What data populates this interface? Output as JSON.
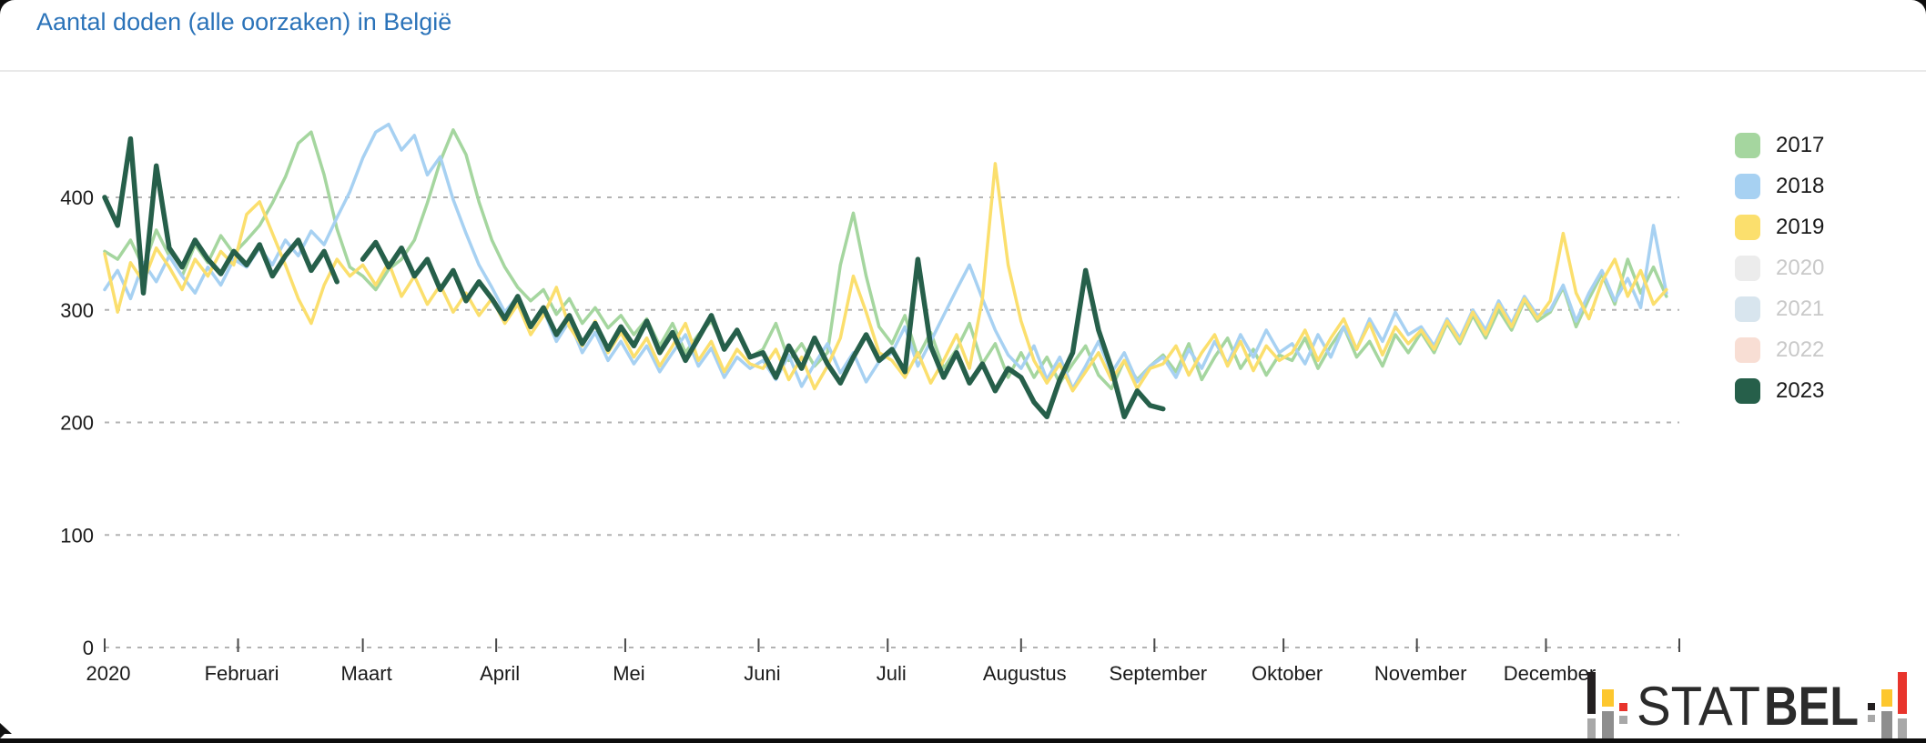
{
  "page": {
    "title": "Aantal doden (alle oorzaken) in België"
  },
  "logo": {
    "text_left": "STAT",
    "text_right": "BEL",
    "colors": {
      "black": "#231f20",
      "gray": "#8e8e8e",
      "light_gray": "#a8a8a8",
      "yellow": "#fdc72e",
      "red": "#e8342c"
    }
  },
  "chart_data": {
    "type": "line",
    "title": "Aantal doden (alle oorzaken) in België",
    "xlabel": "",
    "ylabel": "",
    "grid": "dashed-horizontal",
    "legend_position": "right",
    "x_axis": {
      "tick_labels": [
        "2020",
        "Februari",
        "Maart",
        "April",
        "Mei",
        "Juni",
        "Juli",
        "Augustus",
        "September",
        "Oktober",
        "November",
        "December"
      ],
      "tick_days": [
        0,
        31,
        60,
        91,
        121,
        152,
        182,
        213,
        244,
        274,
        305,
        335
      ],
      "domain_days": [
        0,
        366
      ]
    },
    "y_axis": {
      "ticks": [
        0,
        100,
        200,
        300,
        400
      ],
      "range": [
        0,
        470
      ]
    },
    "legend": [
      {
        "label": "2017",
        "swatch": "#a5d69f",
        "active": true
      },
      {
        "label": "2018",
        "swatch": "#a7d1f2",
        "active": true
      },
      {
        "label": "2019",
        "swatch": "#fbdf6d",
        "active": true
      },
      {
        "label": "2020",
        "swatch": "#ececec",
        "active": false
      },
      {
        "label": "2021",
        "swatch": "#d8e5ee",
        "active": false
      },
      {
        "label": "2022",
        "swatch": "#f8ded4",
        "active": false
      },
      {
        "label": "2023",
        "swatch": "#265f4a",
        "active": true
      }
    ],
    "sample_interval_days": 3,
    "series": [
      {
        "name": "2017",
        "color": "#a5d69f",
        "width": 3.5,
        "start_day": 0,
        "values": [
          352,
          345,
          362,
          338,
          371,
          348,
          330,
          358,
          342,
          366,
          350,
          362,
          375,
          395,
          418,
          448,
          458,
          420,
          372,
          338,
          330,
          318,
          336,
          345,
          362,
          395,
          432,
          460,
          438,
          396,
          362,
          338,
          320,
          308,
          318,
          296,
          310,
          288,
          302,
          284,
          295,
          278,
          292,
          268,
          288,
          262,
          278,
          290,
          266,
          282,
          258,
          265,
          288,
          255,
          270,
          250,
          262,
          340,
          386,
          330,
          285,
          270,
          295,
          258,
          280,
          248,
          265,
          288,
          252,
          270,
          240,
          262,
          240,
          258,
          235,
          252,
          268,
          242,
          230,
          255,
          238,
          250,
          260,
          245,
          270,
          238,
          258,
          275,
          248,
          265,
          242,
          260,
          255,
          275,
          248,
          268,
          285,
          258,
          272,
          250,
          278,
          262,
          280,
          262,
          288,
          270,
          295,
          275,
          300,
          282,
          308,
          290,
          298,
          320,
          285,
          310,
          332,
          305,
          345,
          315,
          338,
          312
        ]
      },
      {
        "name": "2018",
        "color": "#a7d1f2",
        "width": 3.5,
        "start_day": 0,
        "values": [
          318,
          335,
          310,
          342,
          325,
          348,
          330,
          315,
          338,
          322,
          345,
          338,
          355,
          340,
          362,
          348,
          370,
          358,
          382,
          405,
          435,
          458,
          465,
          442,
          455,
          420,
          436,
          398,
          368,
          340,
          320,
          298,
          312,
          285,
          300,
          272,
          290,
          262,
          280,
          255,
          272,
          252,
          268,
          245,
          262,
          278,
          250,
          266,
          240,
          258,
          248,
          255,
          238,
          260,
          232,
          252,
          270,
          244,
          262,
          236,
          254,
          262,
          285,
          250,
          272,
          295,
          318,
          340,
          310,
          282,
          260,
          248,
          268,
          238,
          258,
          230,
          250,
          272,
          244,
          262,
          236,
          250,
          258,
          240,
          265,
          248,
          272,
          252,
          278,
          258,
          282,
          262,
          270,
          252,
          278,
          258,
          285,
          265,
          292,
          272,
          298,
          278,
          285,
          268,
          292,
          275,
          300,
          282,
          308,
          288,
          312,
          295,
          300,
          322,
          290,
          315,
          335,
          308,
          328,
          302,
          375,
          315
        ]
      },
      {
        "name": "2019",
        "color": "#fbdf6d",
        "width": 3.5,
        "start_day": 0,
        "values": [
          350,
          298,
          342,
          325,
          355,
          338,
          318,
          345,
          330,
          352,
          340,
          385,
          396,
          368,
          340,
          310,
          288,
          322,
          345,
          330,
          340,
          322,
          342,
          312,
          330,
          305,
          322,
          298,
          315,
          295,
          310,
          288,
          305,
          278,
          295,
          320,
          285,
          268,
          290,
          262,
          280,
          258,
          275,
          250,
          268,
          288,
          255,
          272,
          245,
          265,
          252,
          248,
          265,
          238,
          258,
          230,
          250,
          275,
          330,
          298,
          262,
          255,
          240,
          262,
          235,
          255,
          278,
          248,
          310,
          430,
          340,
          290,
          255,
          235,
          252,
          228,
          245,
          262,
          238,
          255,
          230,
          248,
          252,
          268,
          242,
          262,
          278,
          250,
          272,
          246,
          268,
          255,
          262,
          282,
          255,
          275,
          292,
          265,
          288,
          260,
          285,
          270,
          282,
          265,
          290,
          272,
          298,
          278,
          305,
          285,
          310,
          292,
          308,
          368,
          315,
          292,
          325,
          345,
          312,
          335,
          305,
          318
        ]
      },
      {
        "name": "2023",
        "color": "#265f4a",
        "width": 5.5,
        "start_day": 0,
        "values": [
          400,
          375,
          452,
          315,
          428,
          355,
          338,
          362,
          345,
          332,
          352,
          340,
          358,
          330,
          348,
          362,
          335,
          352,
          325,
          null,
          345,
          360,
          338,
          355,
          330,
          345,
          318,
          335,
          308,
          325,
          310,
          292,
          312,
          285,
          302,
          278,
          295,
          270,
          288,
          265,
          285,
          268,
          290,
          262,
          280,
          255,
          275,
          295,
          265,
          282,
          258,
          262,
          240,
          268,
          248,
          275,
          252,
          235,
          258,
          278,
          255,
          265,
          245,
          345,
          268,
          240,
          262,
          235,
          252,
          228,
          248,
          240,
          218,
          205,
          238,
          262,
          335,
          282,
          248,
          205,
          228,
          215,
          212
        ]
      }
    ]
  }
}
